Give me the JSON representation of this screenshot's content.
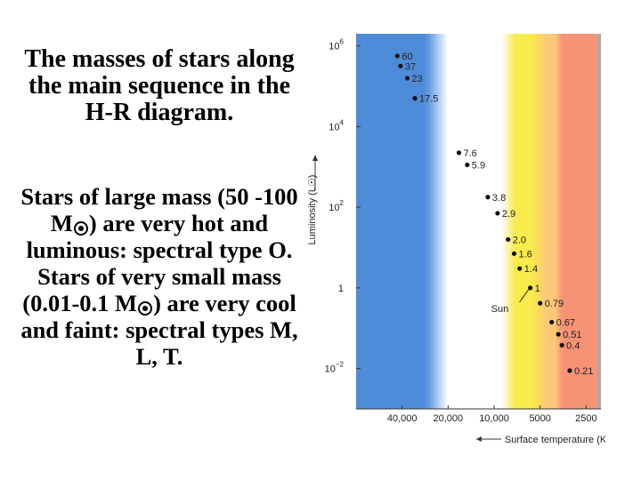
{
  "title": "The masses of stars along the main sequence in the H-R diagram.",
  "body": {
    "part1": "Stars of large mass (50 -100 M",
    "part2": ") are very hot and luminous: spectral type O. Stars of very small mass (0.01-0.1 M",
    "part3": ") are very cool and faint: spectral types M, L, T."
  },
  "chart_data": {
    "type": "scatter",
    "title": "",
    "xlabel": "Surface temperature (K)",
    "ylabel": "Luminosity (L☉)",
    "x_scale": "log, reversed",
    "y_scale": "log",
    "x_ticks": [
      "40,000",
      "20,000",
      "10,000",
      "5000",
      "2500"
    ],
    "x_tick_values": [
      40000,
      20000,
      10000,
      5000,
      2500
    ],
    "xlim": [
      80000,
      2000
    ],
    "ylim_log10": [
      -3,
      6.3
    ],
    "y_ticks": [
      {
        "log": 6,
        "base": "10",
        "exp": "6"
      },
      {
        "log": 4,
        "base": "10",
        "exp": "4"
      },
      {
        "log": 2,
        "base": "10",
        "exp": "2"
      },
      {
        "log": 0,
        "base": "1",
        "exp": ""
      },
      {
        "log": -2,
        "base": "10",
        "exp": "−2"
      }
    ],
    "spectral_bands": [
      {
        "color": "#3f82d6",
        "from_K": 80000,
        "to_K": 28000
      },
      {
        "color": "#ffffff",
        "from_K": 20000,
        "to_K": 9000
      },
      {
        "color": "#f7e93c",
        "from_K": 7300,
        "to_K": 5700
      },
      {
        "color": "#fec46a",
        "from_K": 4600,
        "to_K": 4000
      },
      {
        "color": "#f5896a",
        "from_K": 3600,
        "to_K": 2150
      },
      {
        "color": "#a0a0a0",
        "from_K": 2080,
        "to_K": 2000
      }
    ],
    "points": [
      {
        "mass": "60",
        "temp_K": 43000,
        "log_L": 5.75
      },
      {
        "mass": "37",
        "temp_K": 41000,
        "log_L": 5.5
      },
      {
        "mass": "23",
        "temp_K": 37000,
        "log_L": 5.2
      },
      {
        "mass": "17.5",
        "temp_K": 33000,
        "log_L": 4.7
      },
      {
        "mass": "7.6",
        "temp_K": 17000,
        "log_L": 3.35
      },
      {
        "mass": "5.9",
        "temp_K": 15000,
        "log_L": 3.05
      },
      {
        "mass": "3.8",
        "temp_K": 11000,
        "log_L": 2.25
      },
      {
        "mass": "2.9",
        "temp_K": 9500,
        "log_L": 1.85
      },
      {
        "mass": "2.0",
        "temp_K": 8100,
        "log_L": 1.2
      },
      {
        "mass": "1.6",
        "temp_K": 7400,
        "log_L": 0.85
      },
      {
        "mass": "1.4",
        "temp_K": 6800,
        "log_L": 0.48
      },
      {
        "mass": "1",
        "temp_K": 5800,
        "log_L": 0.0
      },
      {
        "mass": "0.79",
        "temp_K": 5000,
        "log_L": -0.38
      },
      {
        "mass": "0.67",
        "temp_K": 4200,
        "log_L": -0.85
      },
      {
        "mass": "0.51",
        "temp_K": 3800,
        "log_L": -1.15
      },
      {
        "mass": "0.4",
        "temp_K": 3600,
        "log_L": -1.42
      },
      {
        "mass": "0.21",
        "temp_K": 3200,
        "log_L": -2.05
      }
    ],
    "annotation": {
      "text": "Sun",
      "points_to_mass": "1"
    }
  }
}
